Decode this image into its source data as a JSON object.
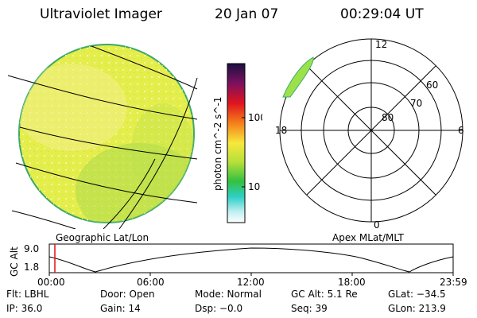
{
  "header": {
    "app": "Ultraviolet Imager",
    "date": "20 Jan 07",
    "time": "00:29:04 UT"
  },
  "colorbar": {
    "unit": "photon cm^-2 s^-1",
    "ticks": [
      "100",
      "10"
    ]
  },
  "polar": {
    "ring_labels": [
      "60",
      "70",
      "80"
    ],
    "mlt_labels": {
      "top": "12",
      "left": "18",
      "right": "6",
      "bottom": "0"
    }
  },
  "labels": {
    "geographic": "Geographic Lat/Lon",
    "apex": "Apex MLat/MLT"
  },
  "altitude_panel": {
    "axis_label": "GC Alt",
    "y_ticks": [
      "9.0",
      "1.8"
    ],
    "x_ticks": [
      "00:00",
      "06:00",
      "12:00",
      "18:00",
      "23:59"
    ]
  },
  "status": {
    "row1": [
      "Flt: LBHL",
      "Door: Open",
      "Mode: Normal",
      "GC Alt: 5.1 Re",
      "GLat: −34.5"
    ],
    "row2": [
      "IP: 36.0",
      "Gain: 14",
      "Dsp:    −0.0",
      "Seq: 39",
      "GLon: 213.9"
    ]
  },
  "colors": {
    "earth_fill": "#e4ee4a",
    "earth_edge": "#3ca86a",
    "auroral_arc": "#9be24a"
  }
}
